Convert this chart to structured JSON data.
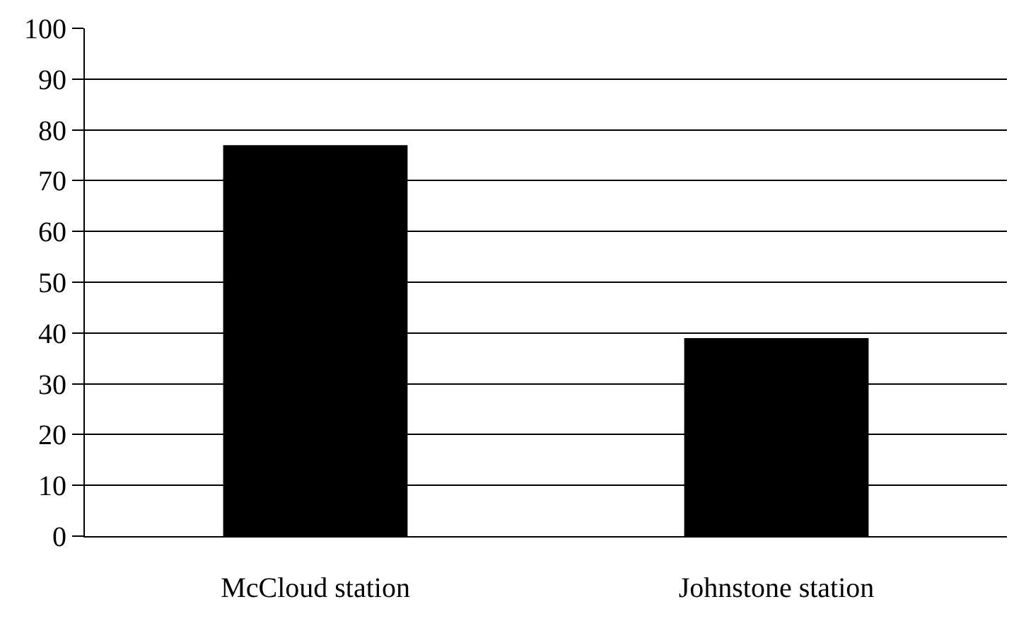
{
  "chart_data": {
    "type": "bar",
    "categories": [
      "McCloud station",
      "Johnstone station"
    ],
    "values": [
      77,
      39
    ],
    "color": "#000000",
    "ylim": [
      0,
      100
    ],
    "yticks": [
      0,
      10,
      20,
      30,
      40,
      50,
      60,
      70,
      80,
      90,
      100
    ],
    "grid": "y"
  }
}
